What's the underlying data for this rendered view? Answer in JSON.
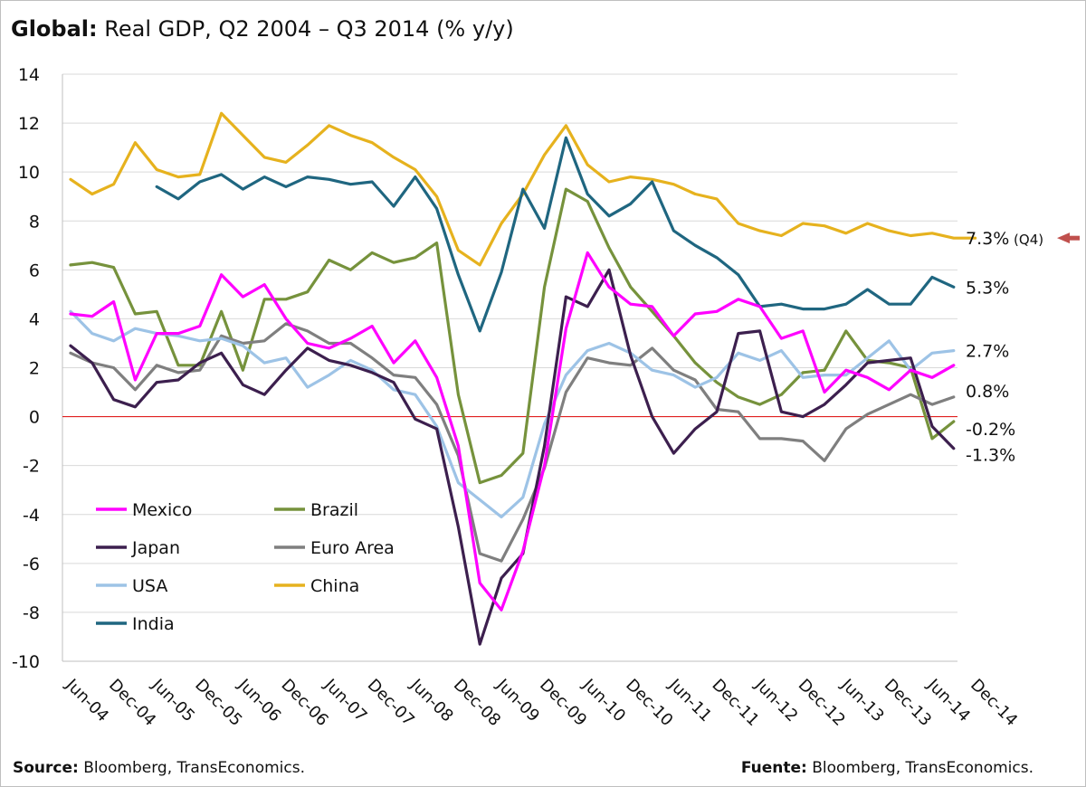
{
  "title": {
    "bold": "Global:",
    "rest": "Real GDP, Q2 2004 – Q3 2014 (% y/y)"
  },
  "footer": {
    "left_label": "Source:",
    "left_text": "Bloomberg, TransEconomics.",
    "right_label": "Fuente:",
    "right_text": "Bloomberg, TransEconomics."
  },
  "chart_data": {
    "type": "line",
    "ylim": [
      -10,
      14
    ],
    "yticks": [
      -10,
      -8,
      -6,
      -4,
      -2,
      0,
      2,
      4,
      6,
      8,
      10,
      12,
      14
    ],
    "xlim": [
      0,
      42
    ],
    "xticks": [
      {
        "q": 0,
        "label": "Jun-04"
      },
      {
        "q": 2,
        "label": "Dec-04"
      },
      {
        "q": 4,
        "label": "Jun-05"
      },
      {
        "q": 6,
        "label": "Dec-05"
      },
      {
        "q": 8,
        "label": "Jun-06"
      },
      {
        "q": 10,
        "label": "Dec-06"
      },
      {
        "q": 12,
        "label": "Jun-07"
      },
      {
        "q": 14,
        "label": "Dec-07"
      },
      {
        "q": 16,
        "label": "Jun-08"
      },
      {
        "q": 18,
        "label": "Dec-08"
      },
      {
        "q": 20,
        "label": "Jun-09"
      },
      {
        "q": 22,
        "label": "Dec-09"
      },
      {
        "q": 24,
        "label": "Jun-10"
      },
      {
        "q": 26,
        "label": "Dec-10"
      },
      {
        "q": 28,
        "label": "Jun-11"
      },
      {
        "q": 30,
        "label": "Dec-11"
      },
      {
        "q": 32,
        "label": "Jun-12"
      },
      {
        "q": 34,
        "label": "Dec-12"
      },
      {
        "q": 36,
        "label": "Jun-13"
      },
      {
        "q": 38,
        "label": "Dec-13"
      },
      {
        "q": 40,
        "label": "Jun-14"
      },
      {
        "q": 42,
        "label": "Dec-14"
      }
    ],
    "grid": true,
    "zero_line_color": "#e02020",
    "series": [
      {
        "name": "Mexico",
        "color": "#ff00ff",
        "start": 0,
        "values": [
          4.2,
          4.1,
          4.7,
          1.5,
          3.4,
          3.4,
          3.7,
          5.8,
          4.9,
          5.4,
          4.0,
          3.0,
          2.8,
          3.2,
          3.7,
          2.2,
          3.1,
          1.6,
          -1.2,
          -6.8,
          -7.9,
          -5.5,
          -2.0,
          3.6,
          6.7,
          5.3,
          4.6,
          4.5,
          3.3,
          4.2,
          4.3,
          4.8,
          4.5,
          3.2,
          3.5,
          1.0,
          1.9,
          1.6,
          1.1,
          1.9,
          1.6,
          2.1
        ]
      },
      {
        "name": "Brazil",
        "color": "#76923c",
        "start": 0,
        "values": [
          6.2,
          6.3,
          6.1,
          4.2,
          4.3,
          2.1,
          2.1,
          4.3,
          1.9,
          4.8,
          4.8,
          5.1,
          6.4,
          6.0,
          6.7,
          6.3,
          6.5,
          7.1,
          0.9,
          -2.7,
          -2.4,
          -1.5,
          5.3,
          9.3,
          8.8,
          6.9,
          5.3,
          4.3,
          3.3,
          2.2,
          1.4,
          0.8,
          0.5,
          0.9,
          1.8,
          1.9,
          3.5,
          2.3,
          2.2,
          2.0,
          -0.9,
          -0.2
        ]
      },
      {
        "name": "Japan",
        "color": "#3c1f4e",
        "start": 0,
        "values": [
          2.9,
          2.2,
          0.7,
          0.4,
          1.4,
          1.5,
          2.2,
          2.6,
          1.3,
          0.9,
          1.9,
          2.8,
          2.3,
          2.1,
          1.8,
          1.4,
          -0.1,
          -0.5,
          -4.5,
          -9.3,
          -6.6,
          -5.6,
          -1.2,
          4.9,
          4.5,
          6.0,
          2.5,
          0.0,
          -1.5,
          -0.5,
          0.2,
          3.4,
          3.5,
          0.2,
          0.0,
          0.5,
          1.3,
          2.2,
          2.3,
          2.4,
          -0.4,
          -1.3
        ]
      },
      {
        "name": "Euro Area",
        "color": "#7f7f7f",
        "start": 0,
        "values": [
          2.6,
          2.2,
          2.0,
          1.1,
          2.1,
          1.8,
          1.9,
          3.3,
          3.0,
          3.1,
          3.8,
          3.5,
          3.0,
          3.0,
          2.4,
          1.7,
          1.6,
          0.5,
          -1.6,
          -5.6,
          -5.9,
          -4.2,
          -2.1,
          1.0,
          2.4,
          2.2,
          2.1,
          2.8,
          1.9,
          1.5,
          0.3,
          0.2,
          -0.9,
          -0.9,
          -1.0,
          -1.8,
          -0.5,
          0.1,
          0.5,
          0.9,
          0.5,
          0.8
        ]
      },
      {
        "name": "USA",
        "color": "#9dc3e6",
        "start": 0,
        "values": [
          4.3,
          3.4,
          3.1,
          3.6,
          3.4,
          3.3,
          3.1,
          3.2,
          2.9,
          2.2,
          2.4,
          1.2,
          1.7,
          2.3,
          1.9,
          1.1,
          0.9,
          -0.4,
          -2.7,
          -3.4,
          -4.1,
          -3.3,
          -0.3,
          1.7,
          2.7,
          3.0,
          2.6,
          1.9,
          1.7,
          1.2,
          1.6,
          2.6,
          2.3,
          2.7,
          1.6,
          1.7,
          1.7,
          2.4,
          3.1,
          1.9,
          2.6,
          2.7
        ]
      },
      {
        "name": "China",
        "color": "#e6b21e",
        "start": 0,
        "values": [
          9.7,
          9.1,
          9.5,
          11.2,
          10.1,
          9.8,
          9.9,
          12.4,
          11.5,
          10.6,
          10.4,
          11.1,
          11.9,
          11.5,
          11.2,
          10.6,
          10.1,
          9.0,
          6.8,
          6.2,
          7.9,
          9.1,
          10.7,
          11.9,
          10.3,
          9.6,
          9.8,
          9.7,
          9.5,
          9.1,
          8.9,
          7.9,
          7.6,
          7.4,
          7.9,
          7.8,
          7.5,
          7.9,
          7.6,
          7.4,
          7.5,
          7.3,
          7.3
        ]
      },
      {
        "name": "India",
        "color": "#1f6680",
        "start": 4,
        "values": [
          9.4,
          8.9,
          9.6,
          9.9,
          9.3,
          9.8,
          9.4,
          9.8,
          9.7,
          9.5,
          9.6,
          8.6,
          9.8,
          8.5,
          5.8,
          3.5,
          5.9,
          9.3,
          7.7,
          11.4,
          9.1,
          8.2,
          8.7,
          9.6,
          7.6,
          7.0,
          6.5,
          5.8,
          4.5,
          4.6,
          4.4,
          4.4,
          4.6,
          5.2,
          4.6,
          4.6,
          5.7,
          5.3
        ]
      }
    ],
    "end_labels": [
      {
        "text": "7.3%",
        "value": 7.3,
        "note": "(Q4)"
      },
      {
        "text": "5.3%",
        "value": 5.3
      },
      {
        "text": "2.7%",
        "value": 2.7
      },
      {
        "text": "0.8%",
        "value": 0.8
      },
      {
        "text": "-0.2%",
        "value": -0.2
      },
      {
        "text": "-1.3%",
        "value": -1.3
      }
    ],
    "arrow_color": "#c0504d",
    "legend": [
      {
        "name": "Mexico",
        "color": "#ff00ff"
      },
      {
        "name": "Brazil",
        "color": "#76923c"
      },
      {
        "name": "Japan",
        "color": "#3c1f4e"
      },
      {
        "name": "Euro Area",
        "color": "#7f7f7f"
      },
      {
        "name": "USA",
        "color": "#9dc3e6"
      },
      {
        "name": "China",
        "color": "#e6b21e"
      },
      {
        "name": "India",
        "color": "#1f6680"
      }
    ]
  }
}
